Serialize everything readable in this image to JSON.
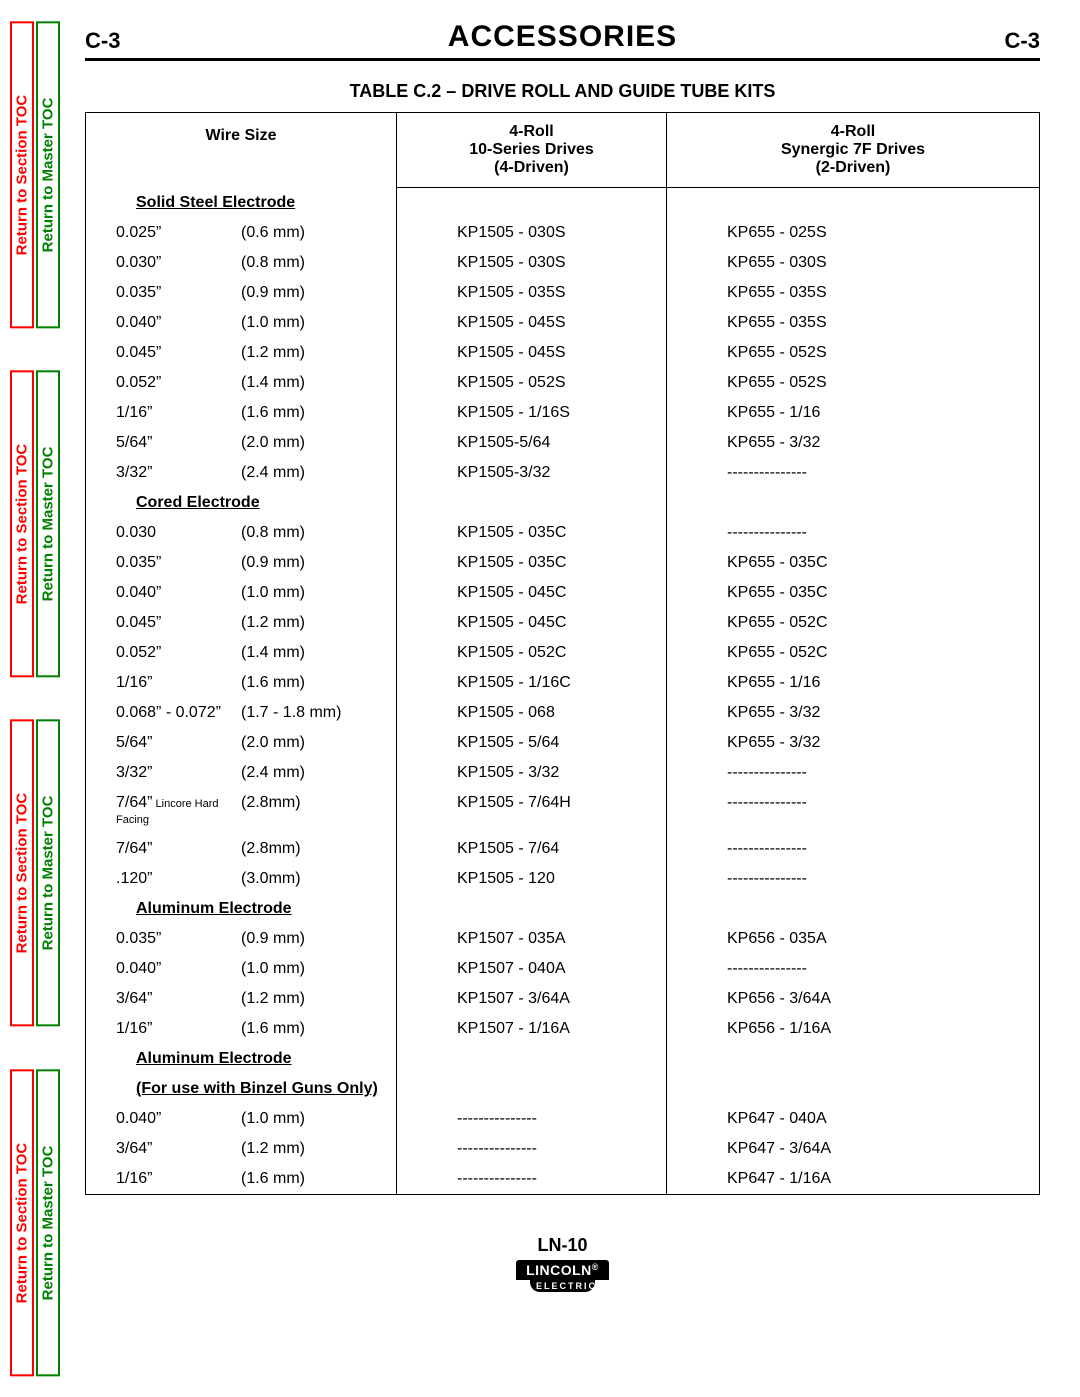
{
  "colors": {
    "text": "#000000",
    "background": "#ffffff",
    "tab_red": "#ff0000",
    "tab_green": "#008000",
    "border": "#000000"
  },
  "side_tabs": {
    "red_label": "Return to Section TOC",
    "green_label": "Return to Master TOC",
    "repeat": 4
  },
  "header": {
    "page_code_left": "C-3",
    "title": "ACCESSORIES",
    "page_code_right": "C-3"
  },
  "table": {
    "title": "TABLE C.2 – DRIVE ROLL AND GUIDE TUBE KITS",
    "columns": {
      "wiresize": "Wire Size",
      "col2_line1": "4-Roll",
      "col2_line2": "10-Series Drives",
      "col2_line3": "(4-Driven)",
      "col3_line1": "4-Roll",
      "col3_line2": "Synergic 7F Drives",
      "col3_line3": "(2-Driven)"
    },
    "sections": [
      {
        "label": "Solid Steel Electrode",
        "rows": [
          {
            "in": "0.025”",
            "mm": "(0.6 mm)",
            "c2": "KP1505 - 030S",
            "c3": "KP655 - 025S"
          },
          {
            "in": "0.030”",
            "mm": "(0.8 mm)",
            "c2": "KP1505 - 030S",
            "c3": "KP655 - 030S"
          },
          {
            "in": "0.035”",
            "mm": "(0.9 mm)",
            "c2": "KP1505 - 035S",
            "c3": "KP655 - 035S"
          },
          {
            "in": "0.040”",
            "mm": "(1.0 mm)",
            "c2": "KP1505 - 045S",
            "c3": "KP655 - 035S"
          },
          {
            "in": "0.045”",
            "mm": "(1.2 mm)",
            "c2": "KP1505 - 045S",
            "c3": "KP655 - 052S"
          },
          {
            "in": "0.052”",
            "mm": "(1.4 mm)",
            "c2": "KP1505 - 052S",
            "c3": "KP655 - 052S"
          },
          {
            "in": "1/16”",
            "mm": "(1.6 mm)",
            "c2": "KP1505 - 1/16S",
            "c3": "KP655 - 1/16"
          },
          {
            "in": "5/64”",
            "mm": "(2.0 mm)",
            "c2": "KP1505-5/64",
            "c3": "KP655 - 3/32"
          },
          {
            "in": "3/32”",
            "mm": "(2.4 mm)",
            "c2": "KP1505-3/32",
            "c3": "---------------"
          }
        ]
      },
      {
        "label": "Cored Electrode",
        "rows": [
          {
            "in": "0.030",
            "mm": "(0.8 mm)",
            "c2": "KP1505 - 035C",
            "c3": "---------------"
          },
          {
            "in": "0.035”",
            "mm": "(0.9 mm)",
            "c2": "KP1505 - 035C",
            "c3": "KP655 - 035C"
          },
          {
            "in": "0.040”",
            "mm": "(1.0 mm)",
            "c2": "KP1505 - 045C",
            "c3": "KP655 - 035C"
          },
          {
            "in": "0.045”",
            "mm": "(1.2 mm)",
            "c2": "KP1505 - 045C",
            "c3": "KP655 - 052C"
          },
          {
            "in": "0.052”",
            "mm": "(1.4 mm)",
            "c2": "KP1505 - 052C",
            "c3": "KP655 - 052C"
          },
          {
            "in": "1/16”",
            "mm": "(1.6 mm)",
            "c2": "KP1505 - 1/16C",
            "c3": "KP655 - 1/16"
          },
          {
            "in": "0.068” - 0.072”",
            "mm": "(1.7 - 1.8 mm)",
            "c2": "KP1505 - 068",
            "c3": "KP655 - 3/32"
          },
          {
            "in": "5/64”",
            "mm": "(2.0 mm)",
            "c2": "KP1505 - 5/64",
            "c3": "KP655 - 3/32"
          },
          {
            "in": "3/32”",
            "mm": "(2.4 mm)",
            "c2": "KP1505 - 3/32",
            "c3": "---------------"
          },
          {
            "in": "7/64”",
            "in_note": " Lincore Hard Facing",
            "mm": "(2.8mm)",
            "c2": "KP1505 - 7/64H",
            "c3": "---------------"
          },
          {
            "in": "7/64”",
            "mm": "(2.8mm)",
            "c2": "KP1505 - 7/64",
            "c3": "---------------"
          },
          {
            "in": ".120”",
            "mm": "(3.0mm)",
            "c2": "KP1505 - 120",
            "c3": "---------------"
          }
        ]
      },
      {
        "label": "Aluminum Electrode",
        "rows": [
          {
            "in": "0.035”",
            "mm": "(0.9 mm)",
            "c2": "KP1507 - 035A",
            "c3": "KP656 - 035A"
          },
          {
            "in": "0.040”",
            "mm": "(1.0 mm)",
            "c2": "KP1507 - 040A",
            "c3": "---------------"
          },
          {
            "in": "3/64”",
            "mm": "(1.2 mm)",
            "c2": "KP1507 - 3/64A",
            "c3": "KP656 - 3/64A"
          },
          {
            "in": "1/16”",
            "mm": "(1.6 mm)",
            "c2": "KP1507 - 1/16A",
            "c3": "KP656 - 1/16A"
          }
        ]
      },
      {
        "label": "Aluminum Electrode",
        "sublabel": "(For use with Binzel Guns Only)",
        "rows": [
          {
            "in": "0.040”",
            "mm": "(1.0 mm)",
            "c2": "---------------",
            "c3": "KP647 - 040A"
          },
          {
            "in": "3/64”",
            "mm": "(1.2 mm)",
            "c2": "---------------",
            "c3": "KP647 - 3/64A"
          },
          {
            "in": "1/16”",
            "mm": "(1.6 mm)",
            "c2": "---------------",
            "c3": "KP647 - 1/16A"
          }
        ]
      }
    ]
  },
  "footer": {
    "model": "LN-10",
    "brand_top": "LINCOLN",
    "brand_reg": "®",
    "brand_bottom": "ELECTRIC"
  }
}
